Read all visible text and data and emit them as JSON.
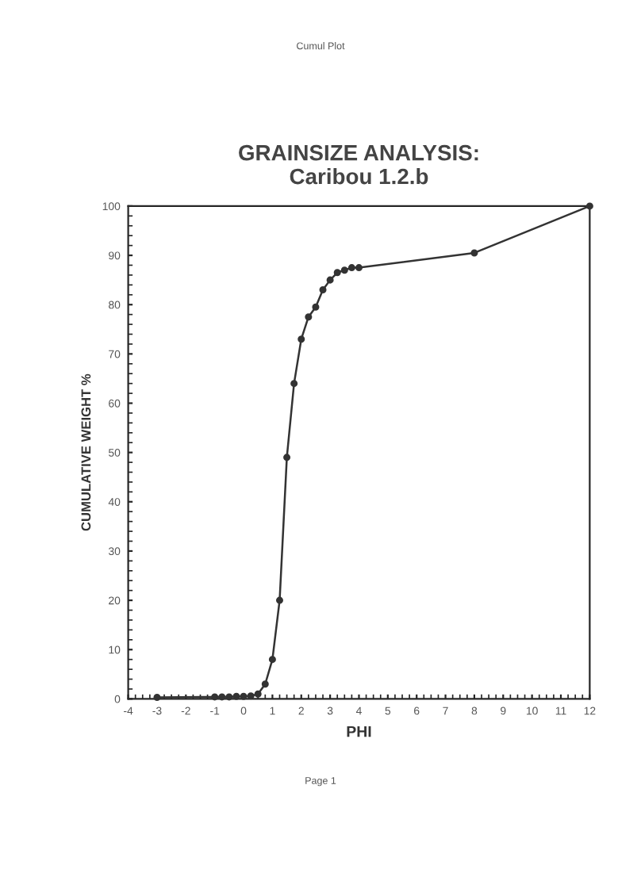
{
  "chart_data": {
    "type": "line",
    "title": "GRAINSIZE ANALYSIS:\nCaribou 1.2.b",
    "xlabel": "PHI",
    "ylabel": "CUMULATIVE WEIGHT %",
    "annotations": [
      "Cumul Plot",
      "Page 1"
    ],
    "x": [
      -3,
      -1,
      -0.75,
      -0.5,
      -0.25,
      0,
      0.25,
      0.5,
      0.75,
      1,
      1.25,
      1.5,
      1.75,
      2,
      2.25,
      2.5,
      2.75,
      3,
      3.25,
      3.5,
      3.75,
      4,
      8,
      12
    ],
    "series": [
      {
        "color": "#333333",
        "values": [
          0.3,
          0.4,
          0.4,
          0.4,
          0.5,
          0.5,
          0.6,
          1,
          3,
          8,
          20,
          49,
          64,
          73,
          77.5,
          79.5,
          83,
          85,
          86.5,
          87,
          87.5,
          87.5,
          90.5,
          100
        ]
      }
    ],
    "xlim": [
      -4,
      12
    ],
    "xticks": [
      -4,
      -3,
      -2,
      -1,
      0,
      1,
      2,
      3,
      4,
      5,
      6,
      7,
      8,
      9,
      10,
      11,
      12
    ],
    "ylim": [
      0,
      100
    ],
    "yticks": [
      0,
      10,
      20,
      30,
      40,
      50,
      60,
      70,
      80,
      90,
      100
    ],
    "marker": "circle",
    "line_style": "solid",
    "grid": false,
    "legend": false
  }
}
